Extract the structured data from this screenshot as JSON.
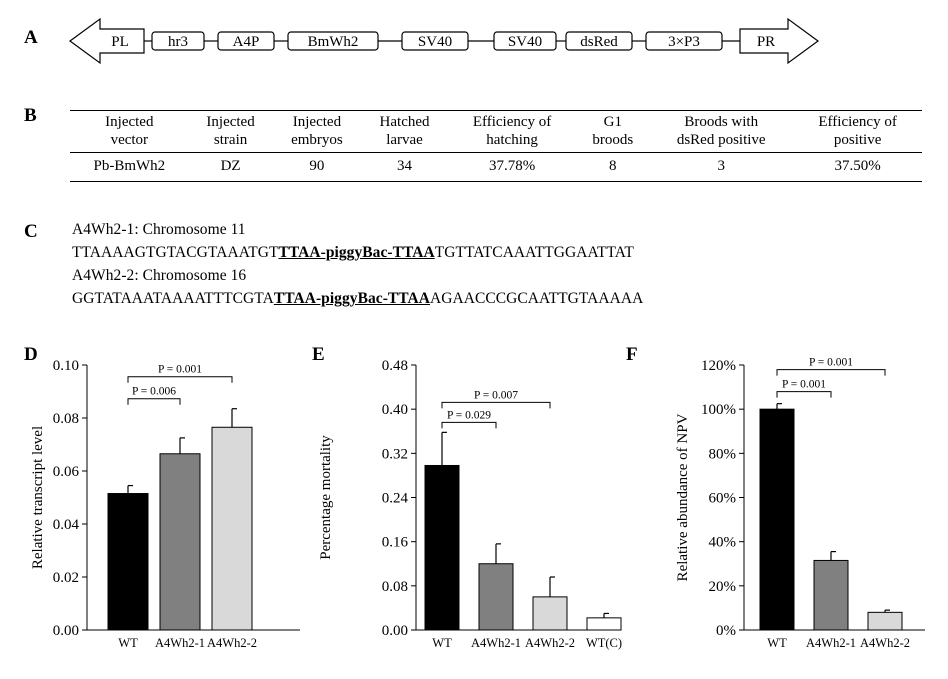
{
  "panel_labels": {
    "a": "A",
    "b": "B",
    "c": "C",
    "d": "D",
    "e": "E",
    "f": "F"
  },
  "construct": {
    "left_arrow": "PL",
    "elements": [
      "hr3",
      "A4P",
      "BmWh2",
      "SV40",
      "SV40",
      "dsRed",
      "3×P3"
    ],
    "right_arrow": "PR"
  },
  "table": {
    "headers": [
      [
        "Injected",
        "vector"
      ],
      [
        "Injected",
        "strain"
      ],
      [
        "Injected",
        "embryos"
      ],
      [
        "Hatched",
        "larvae"
      ],
      [
        "Efficiency of",
        "hatching"
      ],
      [
        "G1",
        "broods"
      ],
      [
        "Broods with",
        "dsRed positive"
      ],
      [
        "Efficiency of",
        "positive"
      ]
    ],
    "rows": [
      [
        "Pb-BmWh2",
        "DZ",
        "90",
        "34",
        "37.78%",
        "8",
        "3",
        "37.50%"
      ]
    ]
  },
  "insertions": [
    {
      "title": "A4Wh2-1: Chromosome 11",
      "left": "TTAAAAGTGTACGTAAATGT",
      "insert": "TTAA-piggyBac-TTAA",
      "right": "TGTTATCAAATTGGAATTAT"
    },
    {
      "title": "A4Wh2-2: Chromosome 16",
      "left": "GGTATAAATAAAATTTCGTA",
      "insert": "TTAA-piggyBac-TTAA",
      "right": "AGAACCCGCAATTGTAAAAA"
    }
  ],
  "chart_data": [
    {
      "panel": "D",
      "type": "bar",
      "categories": [
        "WT",
        "A4Wh2-1",
        "A4Wh2-2"
      ],
      "values": [
        0.0515,
        0.0665,
        0.0765
      ],
      "errors": [
        0.003,
        0.006,
        0.007
      ],
      "colors": [
        "#000000",
        "#808080",
        "#d9d9d9"
      ],
      "ylabel": "Relative transcript level",
      "ylim": [
        0,
        0.1
      ],
      "yticks": [
        0.0,
        0.02,
        0.04,
        0.06,
        0.08,
        0.1
      ],
      "ytick_labels": [
        "0.00",
        "0.02",
        "0.04",
        "0.06",
        "0.08",
        "0.10"
      ],
      "annotations": [
        {
          "from": 0,
          "to": 1,
          "label": "P = 0.006"
        },
        {
          "from": 0,
          "to": 2,
          "label": "P = 0.001"
        }
      ]
    },
    {
      "panel": "E",
      "type": "bar",
      "categories": [
        "WT",
        "A4Wh2-1",
        "A4Wh2-2",
        "WT(C)"
      ],
      "values": [
        0.298,
        0.12,
        0.06,
        0.022
      ],
      "errors": [
        0.06,
        0.036,
        0.036,
        0.008
      ],
      "colors": [
        "#000000",
        "#808080",
        "#d9d9d9",
        "#ffffff"
      ],
      "ylabel": "Percentage mortality",
      "ylim": [
        0,
        0.48
      ],
      "yticks": [
        0.0,
        0.08,
        0.16,
        0.24,
        0.32,
        0.4,
        0.48
      ],
      "ytick_labels": [
        "0.00",
        "0.08",
        "0.16",
        "0.24",
        "0.32",
        "0.40",
        "0.48"
      ],
      "annotations": [
        {
          "from": 0,
          "to": 1,
          "label": "P = 0.029"
        },
        {
          "from": 0,
          "to": 2,
          "label": "P = 0.007"
        }
      ]
    },
    {
      "panel": "F",
      "type": "bar",
      "categories": [
        "WT",
        "A4Wh2-1",
        "A4Wh2-2"
      ],
      "values": [
        100,
        31.5,
        8
      ],
      "errors": [
        2.5,
        4,
        1
      ],
      "colors": [
        "#000000",
        "#808080",
        "#d9d9d9"
      ],
      "ylabel": "Relative abundance of NPV",
      "ylim": [
        0,
        120
      ],
      "yticks": [
        0,
        20,
        40,
        60,
        80,
        100,
        120
      ],
      "ytick_labels": [
        "0%",
        "20%",
        "40%",
        "60%",
        "80%",
        "100%",
        "120%"
      ],
      "annotations": [
        {
          "from": 0,
          "to": 1,
          "label": "P = 0.001"
        },
        {
          "from": 0,
          "to": 2,
          "label": "P = 0.001"
        }
      ]
    }
  ]
}
